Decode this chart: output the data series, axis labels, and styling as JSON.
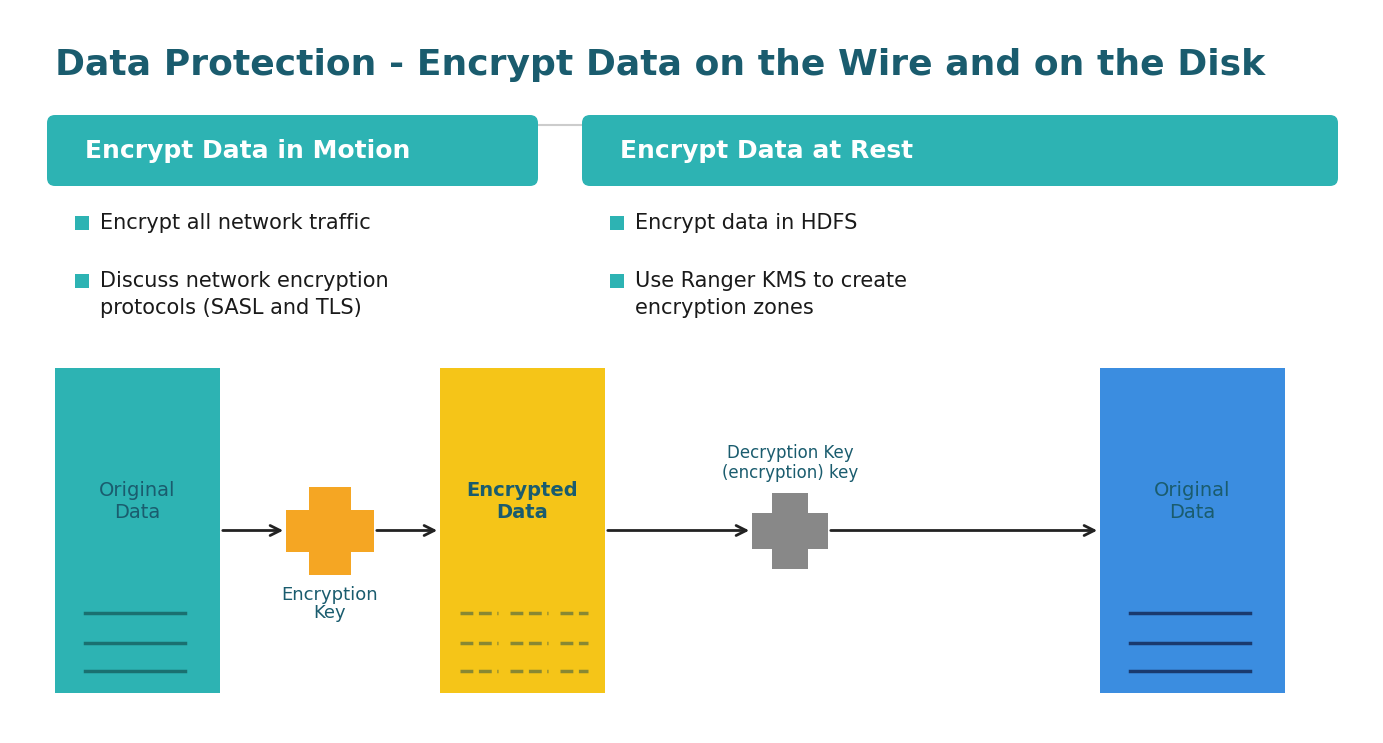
{
  "title": "Data Protection - Encrypt Data on the Wire and on the Disk",
  "title_color": "#1a5c6e",
  "title_fontsize": 26,
  "bg_color": "#ffffff",
  "teal_header_color": "#2db3b3",
  "header1": "Encrypt Data in Motion",
  "header2": "Encrypt Data at Rest",
  "header_text_color": "#ffffff",
  "header_fontsize": 18,
  "bullet_color": "#2db3b3",
  "bullet_text_color": "#1a1a1a",
  "bullet_fontsize": 15,
  "bullets_left_1": "Encrypt all network traffic",
  "bullets_left_2a": "Discuss network encryption",
  "bullets_left_2b": "protocols (SASL and TLS)",
  "bullets_right_1": "Encrypt data in HDFS",
  "bullets_right_2a": "Use Ranger KMS to create",
  "bullets_right_2b": "encryption zones",
  "box1_color": "#2db3b3",
  "box1_text_line1": "Original",
  "box1_text_line2": "Data",
  "box1_text_color": "#1a5c6e",
  "box2_color": "#f5a623",
  "box2_label_1": "Encryption",
  "box2_label_2": "Key",
  "box2_label_color": "#1a5c6e",
  "box3_color": "#f5c518",
  "box3_text_line1": "Encrypted",
  "box3_text_line2": "Data",
  "box3_text_color": "#1a5c6e",
  "box4_color": "#888888",
  "box4_label_1": "Decryption Key",
  "box4_label_2": "(encryption) key",
  "box4_label_color": "#1a5c6e",
  "box5_color": "#3b8de0",
  "box5_text_line1": "Original",
  "box5_text_line2": "Data",
  "box5_text_color": "#1a5c6e",
  "arrow_color": "#222222",
  "separator_color": "#cccccc",
  "line_color_teal": "#1a7070",
  "line_color_yellow": "#888833",
  "line_color_blue": "#1a3a6e"
}
